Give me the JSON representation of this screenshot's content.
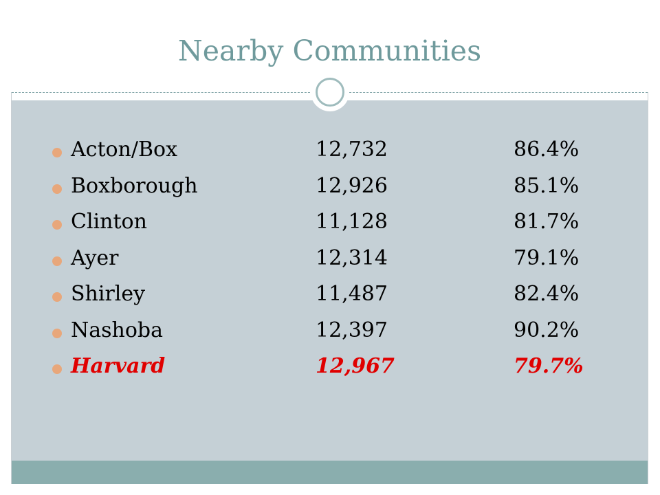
{
  "slide": {
    "title": "Nearby Communities",
    "highlight_color": "#e00000",
    "bullet_color": "#e8a77b",
    "title_color": "#6f9a9c",
    "panel_color": "#c5d0d6",
    "footer_color": "#8aaeae"
  },
  "rows": [
    {
      "name": "Acton/Box",
      "income": "12,732",
      "pct": "86.4%",
      "highlight": false
    },
    {
      "name": "Boxborough",
      "income": "12,926",
      "pct": "85.1%",
      "highlight": false
    },
    {
      "name": "Clinton",
      "income": "11,128",
      "pct": "81.7%",
      "highlight": false
    },
    {
      "name": "Ayer",
      "income": "12,314",
      "pct": "79.1%",
      "highlight": false
    },
    {
      "name": "Shirley",
      "income": "11,487",
      "pct": "82.4%",
      "highlight": false
    },
    {
      "name": "Nashoba",
      "income": "12,397",
      "pct": "90.2%",
      "highlight": false
    },
    {
      "name": "Harvard",
      "income": "12,967",
      "pct": "79.7%",
      "highlight": true
    }
  ]
}
